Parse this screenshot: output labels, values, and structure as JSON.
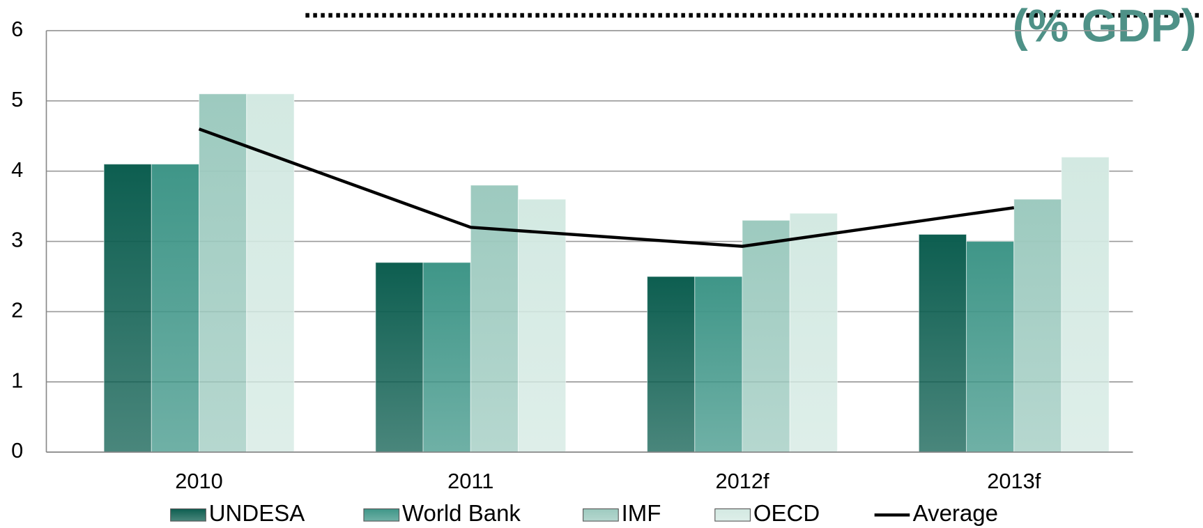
{
  "chart_data": {
    "type": "bar",
    "title": "(% GDP)",
    "categories": [
      "2010",
      "2011",
      "2012f",
      "2013f"
    ],
    "series": [
      {
        "name": "UNDESA",
        "color": "#0d5e50",
        "values": [
          4.1,
          2.7,
          2.5,
          3.1
        ]
      },
      {
        "name": "World Bank",
        "color": "#3f9688",
        "values": [
          4.1,
          2.7,
          2.5,
          3.0
        ]
      },
      {
        "name": "IMF",
        "color": "#9dcabf",
        "values": [
          5.1,
          3.8,
          3.3,
          3.6
        ]
      },
      {
        "name": "OECD",
        "color": "#d3e9e2",
        "values": [
          5.1,
          3.6,
          3.4,
          4.2
        ]
      },
      {
        "name": "Average",
        "type": "line",
        "color": "#000000",
        "values": [
          4.6,
          3.2,
          2.93,
          3.48
        ]
      }
    ],
    "ylim": [
      0,
      6
    ],
    "yticks": [
      0,
      1,
      2,
      3,
      4,
      5,
      6
    ],
    "grid": true,
    "legend": "bottom"
  }
}
